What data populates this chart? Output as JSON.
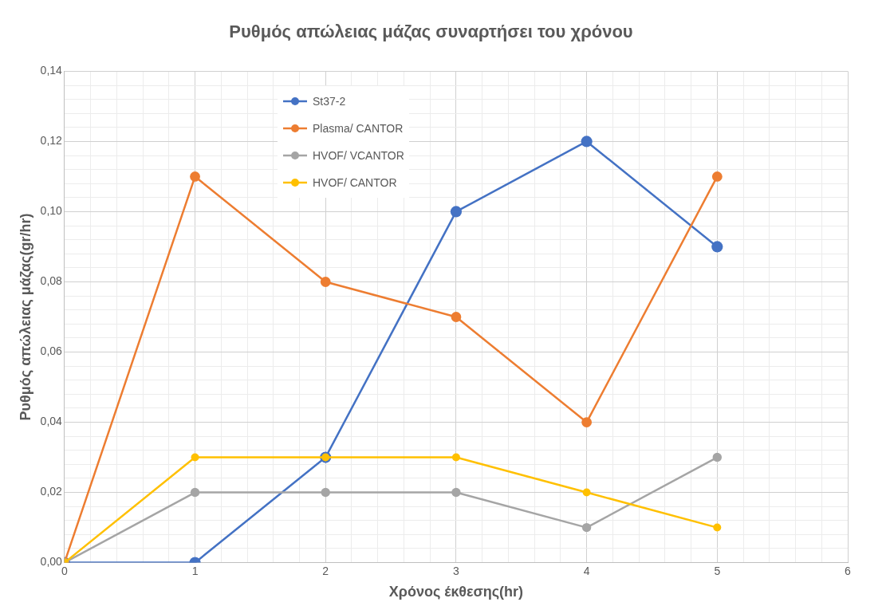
{
  "chart_data": {
    "type": "line",
    "title": "Ρυθμός απώλειας μάζας συναρτήσει του χρόνου",
    "xlabel": "Χρόνος έκθεσης(hr)",
    "ylabel": "Ρυθμός απώλειας μάζας(gr/hr)",
    "x": [
      0,
      1,
      2,
      3,
      4,
      5
    ],
    "series": [
      {
        "name": "St37-2",
        "color": "#4472c4",
        "values": [
          0,
          0,
          0.03,
          0.1,
          0.12,
          0.09
        ]
      },
      {
        "name": "Plasma/ CANTOR",
        "color": "#ed7d31",
        "values": [
          0,
          0.11,
          0.08,
          0.07,
          0.04,
          0.11
        ]
      },
      {
        "name": "HVOF/ VCANTOR",
        "color": "#a5a5a5",
        "values": [
          0,
          0.02,
          0.02,
          0.02,
          0.01,
          0.03
        ]
      },
      {
        "name": "HVOF/ CANTOR",
        "color": "#ffc000",
        "values": [
          0,
          0.03,
          0.03,
          0.03,
          0.02,
          0.01
        ]
      }
    ],
    "xlim": [
      0,
      6
    ],
    "xticks": [
      0,
      {
        "value": 0.2,
        "label": null
      },
      {
        "value": 0.4,
        "label": null
      },
      {
        "value": 0.6,
        "label": null
      },
      {
        "value": 0.8,
        "label": null
      },
      1,
      {
        "value": 1.2,
        "label": null
      },
      {
        "value": 1.4,
        "label": null
      },
      {
        "value": 1.6,
        "label": null
      },
      {
        "value": 1.8,
        "label": null
      },
      2,
      {
        "value": 2.2,
        "label": null
      },
      {
        "value": 2.4,
        "label": null
      },
      {
        "value": 2.6,
        "label": null
      },
      {
        "value": 2.8,
        "label": null
      },
      3,
      {
        "value": 3.2,
        "label": null
      },
      {
        "value": 3.4,
        "label": null
      },
      {
        "value": 3.6,
        "label": null
      },
      {
        "value": 3.8,
        "label": null
      },
      4,
      {
        "value": 4.2,
        "label": null
      },
      {
        "value": 4.4,
        "label": null
      },
      {
        "value": 4.6,
        "label": null
      },
      {
        "value": 4.8,
        "label": null
      },
      5,
      {
        "value": 5.2,
        "label": null
      },
      {
        "value": 5.4,
        "label": null
      },
      {
        "value": 5.6,
        "label": null
      },
      {
        "value": 5.8,
        "label": null
      },
      6
    ],
    "ylim": [
      0,
      0.14
    ],
    "yticks": [
      {
        "value": 0,
        "label": "0,00"
      },
      {
        "value": 0.004,
        "label": null
      },
      {
        "value": 0.008,
        "label": null
      },
      {
        "value": 0.012,
        "label": null
      },
      {
        "value": 0.016,
        "label": null
      },
      {
        "value": 0.02,
        "label": "0,02"
      },
      {
        "value": 0.024,
        "label": null
      },
      {
        "value": 0.028,
        "label": null
      },
      {
        "value": 0.032,
        "label": null
      },
      {
        "value": 0.036,
        "label": null
      },
      {
        "value": 0.04,
        "label": "0,04"
      },
      {
        "value": 0.044,
        "label": null
      },
      {
        "value": 0.048,
        "label": null
      },
      {
        "value": 0.052,
        "label": null
      },
      {
        "value": 0.056,
        "label": null
      },
      {
        "value": 0.06,
        "label": "0,06"
      },
      {
        "value": 0.064,
        "label": null
      },
      {
        "value": 0.068,
        "label": null
      },
      {
        "value": 0.072,
        "label": null
      },
      {
        "value": 0.076,
        "label": null
      },
      {
        "value": 0.08,
        "label": "0,08"
      },
      {
        "value": 0.084,
        "label": null
      },
      {
        "value": 0.088,
        "label": null
      },
      {
        "value": 0.092,
        "label": null
      },
      {
        "value": 0.096,
        "label": null
      },
      {
        "value": 0.1,
        "label": "0,10"
      },
      {
        "value": 0.104,
        "label": null
      },
      {
        "value": 0.108,
        "label": null
      },
      {
        "value": 0.112,
        "label": null
      },
      {
        "value": 0.116,
        "label": null
      },
      {
        "value": 0.12,
        "label": "0,12"
      },
      {
        "value": 0.124,
        "label": null
      },
      {
        "value": 0.128,
        "label": null
      },
      {
        "value": 0.132,
        "label": null
      },
      {
        "value": 0.136,
        "label": null
      },
      {
        "value": 0.14,
        "label": "0,14"
      }
    ],
    "grid": true,
    "legend": "top left",
    "marker": "circle",
    "line_style": "solid"
  }
}
